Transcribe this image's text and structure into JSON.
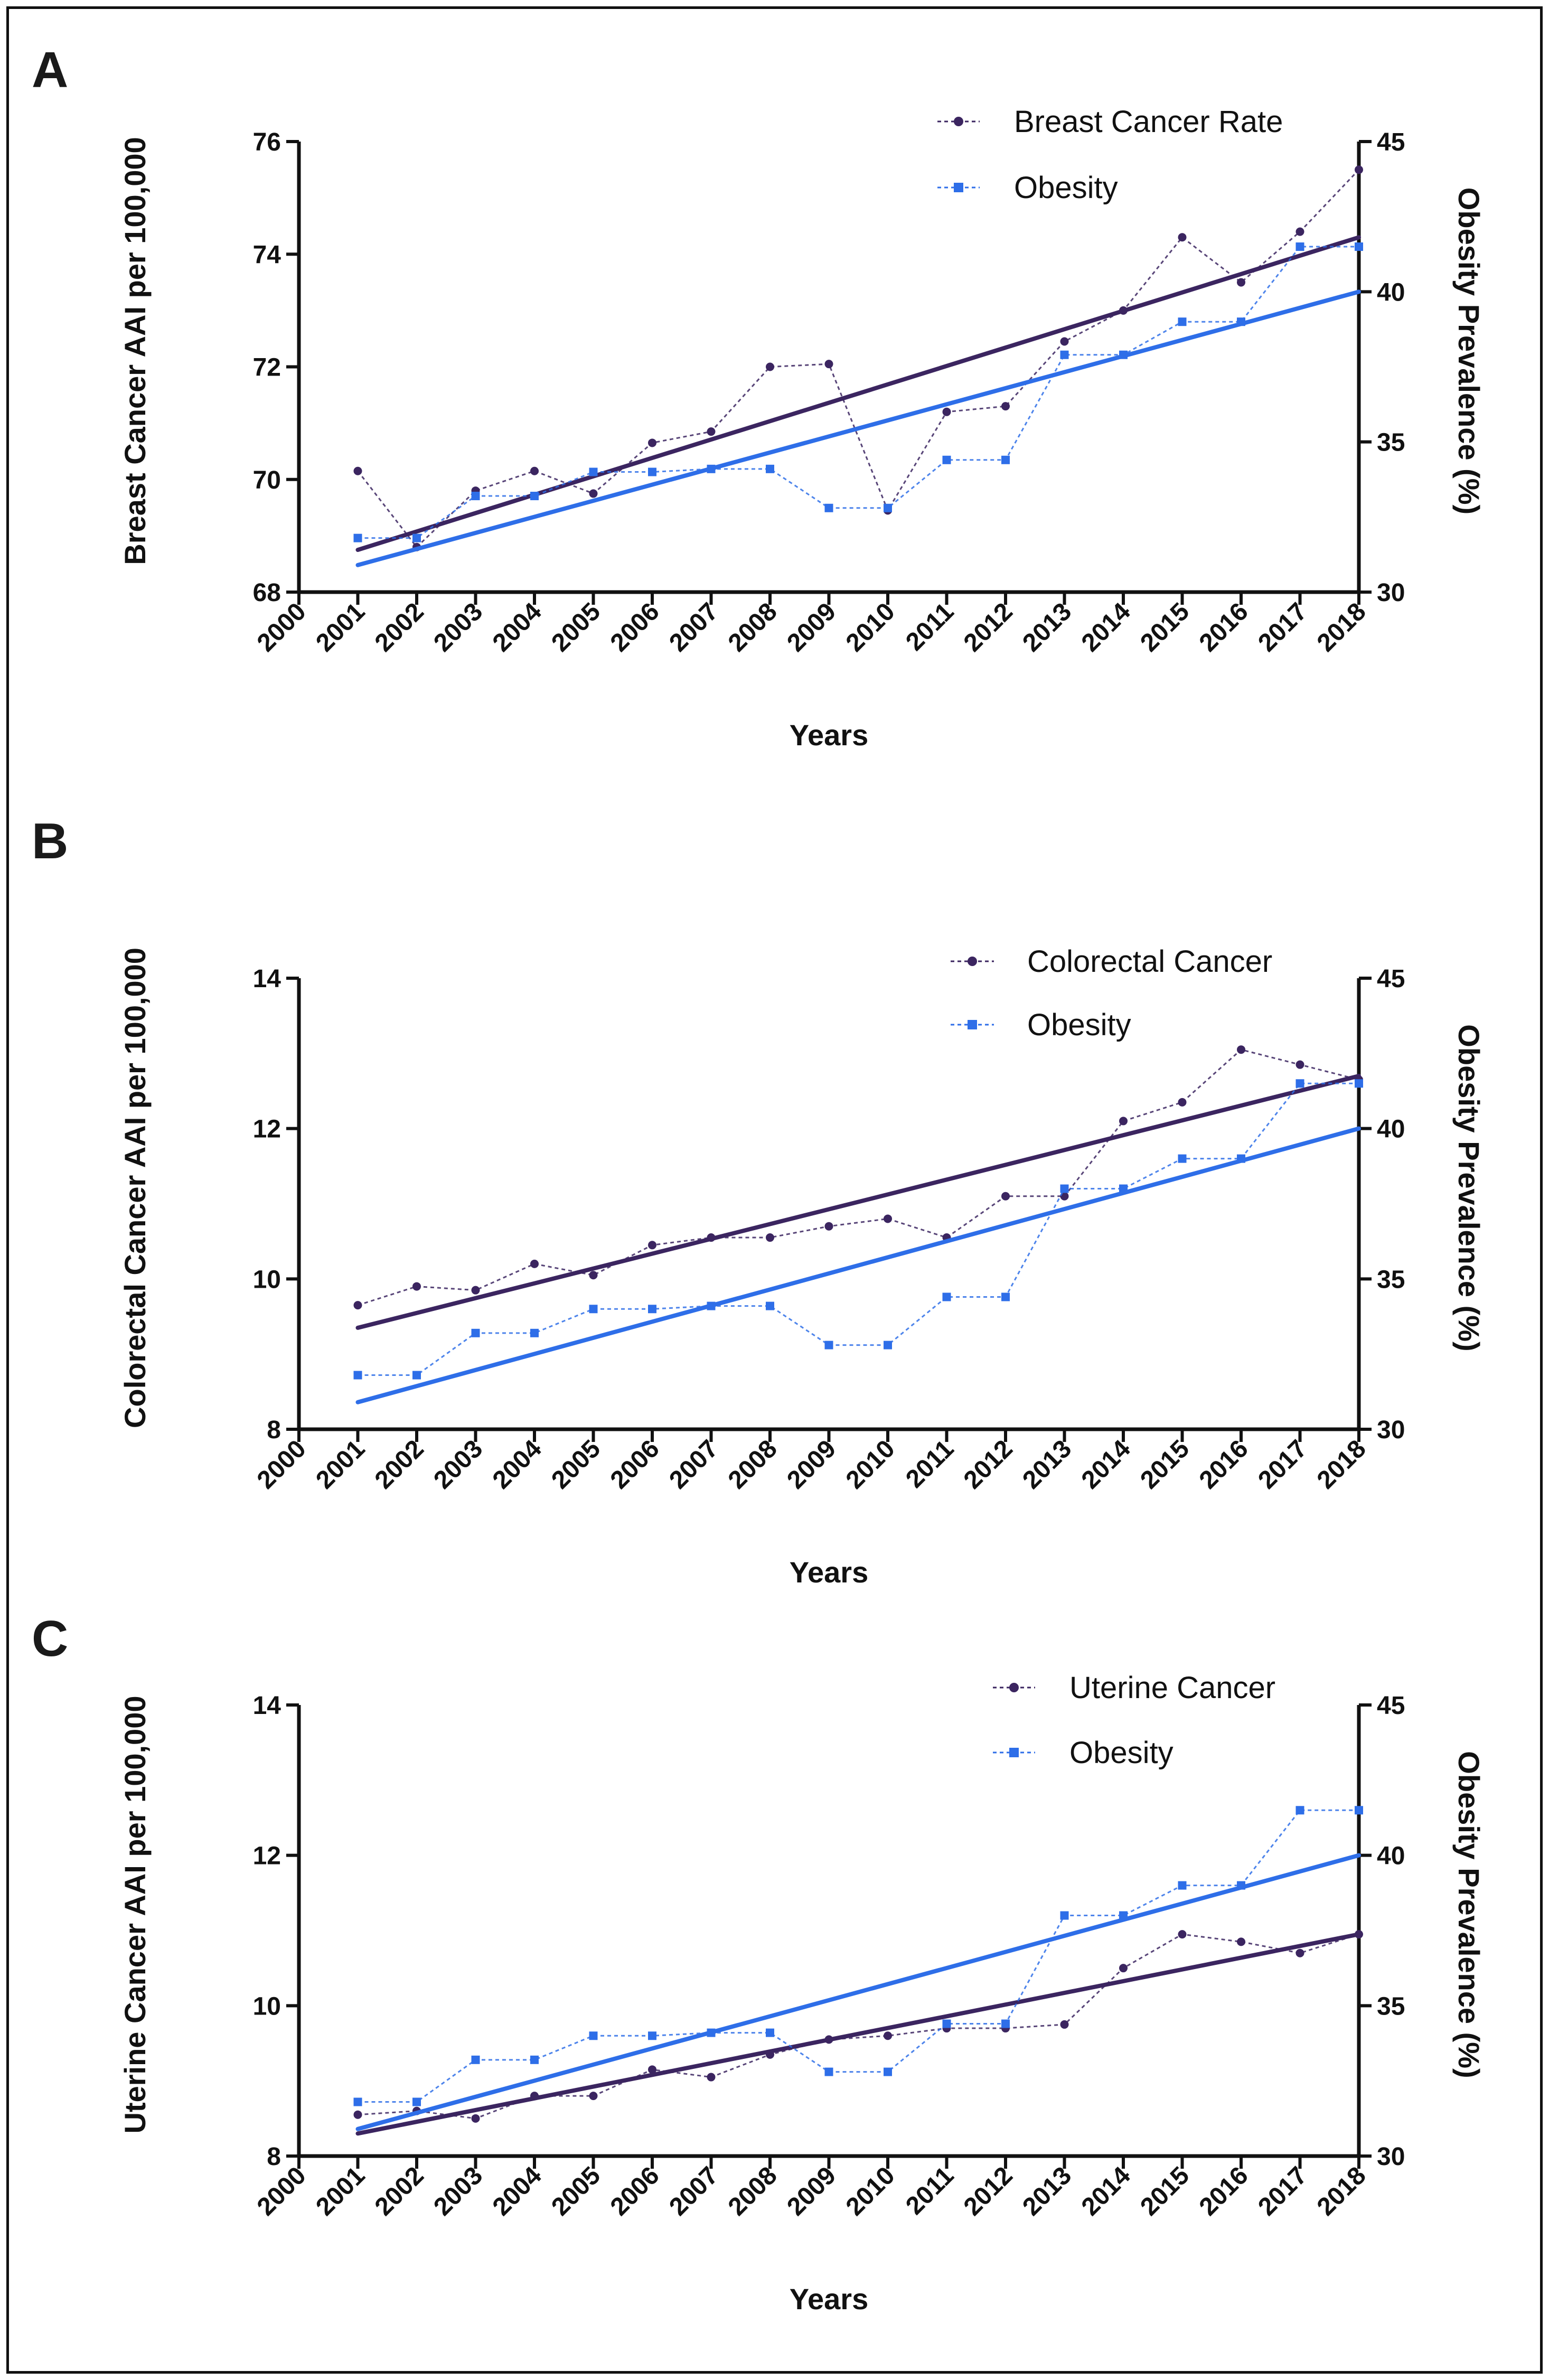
{
  "colors": {
    "cancer": "#3b2560",
    "obesity": "#2e6ee8",
    "axis": "#111111"
  },
  "chart_data": [
    {
      "type": "line",
      "panel_label": "A",
      "x": [
        2001,
        2002,
        2003,
        2004,
        2005,
        2006,
        2007,
        2008,
        2009,
        2010,
        2011,
        2012,
        2013,
        2014,
        2015,
        2016,
        2017,
        2018
      ],
      "x_tick_labels": [
        "2000",
        "2001",
        "2002",
        "2003",
        "2004",
        "2005",
        "2006",
        "2007",
        "2008",
        "2009",
        "2010",
        "2011",
        "2012",
        "2013",
        "2014",
        "2015",
        "2016",
        "2017",
        "2018"
      ],
      "xlim": [
        2000,
        2018
      ],
      "xlabel": "Years",
      "ylabel_left": "Breast Cancer AAI per 100,000",
      "ylim_left": [
        68,
        76
      ],
      "yticks_left": [
        68,
        70,
        72,
        74,
        76
      ],
      "ylabel_right": "Obesity Prevalence (%)",
      "ylim_right": [
        30,
        45
      ],
      "yticks_right": [
        30,
        35,
        40,
        45
      ],
      "legend_position": "top-right",
      "series": [
        {
          "name": "Breast Cancer Rate",
          "axis": "left",
          "marker": "circle",
          "values": [
            70.15,
            68.8,
            69.8,
            70.15,
            69.75,
            70.65,
            70.85,
            72.0,
            72.05,
            69.45,
            71.2,
            71.3,
            72.45,
            73.0,
            74.3,
            73.5,
            74.4,
            75.5
          ],
          "trend": [
            68.75,
            74.3
          ]
        },
        {
          "name": "Obesity",
          "axis": "right",
          "marker": "square",
          "values": [
            31.8,
            31.8,
            33.2,
            33.2,
            34.0,
            34.0,
            34.1,
            34.1,
            32.8,
            32.8,
            34.4,
            34.4,
            37.9,
            37.9,
            39.0,
            39.0,
            41.5,
            41.5
          ],
          "trend": [
            30.9,
            40.0
          ]
        }
      ]
    },
    {
      "type": "line",
      "panel_label": "B",
      "x": [
        2001,
        2002,
        2003,
        2004,
        2005,
        2006,
        2007,
        2008,
        2009,
        2010,
        2011,
        2012,
        2013,
        2014,
        2015,
        2016,
        2017,
        2018
      ],
      "x_tick_labels": [
        "2000",
        "2001",
        "2002",
        "2003",
        "2004",
        "2005",
        "2006",
        "2007",
        "2008",
        "2009",
        "2010",
        "2011",
        "2012",
        "2013",
        "2014",
        "2015",
        "2016",
        "2017",
        "2018"
      ],
      "xlim": [
        2000,
        2018
      ],
      "xlabel": "Years",
      "ylabel_left": "Colorectal Cancer AAI per 100,000",
      "ylim_left": [
        8,
        14
      ],
      "yticks_left": [
        8,
        10,
        12,
        14
      ],
      "ylabel_right": "Obesity Prevalence (%)",
      "ylim_right": [
        30,
        45
      ],
      "yticks_right": [
        30,
        35,
        40,
        45
      ],
      "legend_position": "top-right",
      "series": [
        {
          "name": "Colorectal Cancer",
          "axis": "left",
          "marker": "circle",
          "values": [
            9.65,
            9.9,
            9.85,
            10.2,
            10.05,
            10.45,
            10.55,
            10.55,
            10.7,
            10.8,
            10.55,
            11.1,
            11.1,
            12.1,
            12.35,
            13.05,
            12.85,
            12.65
          ],
          "trend": [
            9.35,
            12.7
          ]
        },
        {
          "name": "Obesity",
          "axis": "right",
          "marker": "square",
          "values": [
            31.8,
            31.8,
            33.2,
            33.2,
            34.0,
            34.0,
            34.1,
            34.1,
            32.8,
            32.8,
            34.4,
            34.4,
            38.0,
            38.0,
            39.0,
            39.0,
            41.5,
            41.5
          ],
          "trend": [
            30.9,
            40.0
          ]
        }
      ]
    },
    {
      "type": "line",
      "panel_label": "C",
      "x": [
        2001,
        2002,
        2003,
        2004,
        2005,
        2006,
        2007,
        2008,
        2009,
        2010,
        2011,
        2012,
        2013,
        2014,
        2015,
        2016,
        2017,
        2018
      ],
      "x_tick_labels": [
        "2000",
        "2001",
        "2002",
        "2003",
        "2004",
        "2005",
        "2006",
        "2007",
        "2008",
        "2009",
        "2010",
        "2011",
        "2012",
        "2013",
        "2014",
        "2015",
        "2016",
        "2017",
        "2018"
      ],
      "xlim": [
        2000,
        2018
      ],
      "xlabel": "Years",
      "ylabel_left": "Uterine Cancer AAI per 100,000",
      "ylim_left": [
        8,
        14
      ],
      "yticks_left": [
        8,
        10,
        12,
        14
      ],
      "ylabel_right": "Obesity Prevalence (%)",
      "ylim_right": [
        30,
        45
      ],
      "yticks_right": [
        30,
        35,
        40,
        45
      ],
      "legend_position": "top-right",
      "series": [
        {
          "name": "Uterine Cancer",
          "axis": "left",
          "marker": "circle",
          "values": [
            8.55,
            8.6,
            8.5,
            8.8,
            8.8,
            9.15,
            9.05,
            9.35,
            9.55,
            9.6,
            9.7,
            9.7,
            9.75,
            10.5,
            10.95,
            10.85,
            10.7,
            10.95
          ],
          "trend": [
            8.3,
            10.95
          ]
        },
        {
          "name": "Obesity",
          "axis": "right",
          "marker": "square",
          "values": [
            31.8,
            31.8,
            33.2,
            33.2,
            34.0,
            34.0,
            34.1,
            34.1,
            32.8,
            32.8,
            34.4,
            34.4,
            38.0,
            38.0,
            39.0,
            39.0,
            41.5,
            41.5
          ],
          "trend": [
            30.9,
            40.0
          ]
        }
      ]
    }
  ]
}
